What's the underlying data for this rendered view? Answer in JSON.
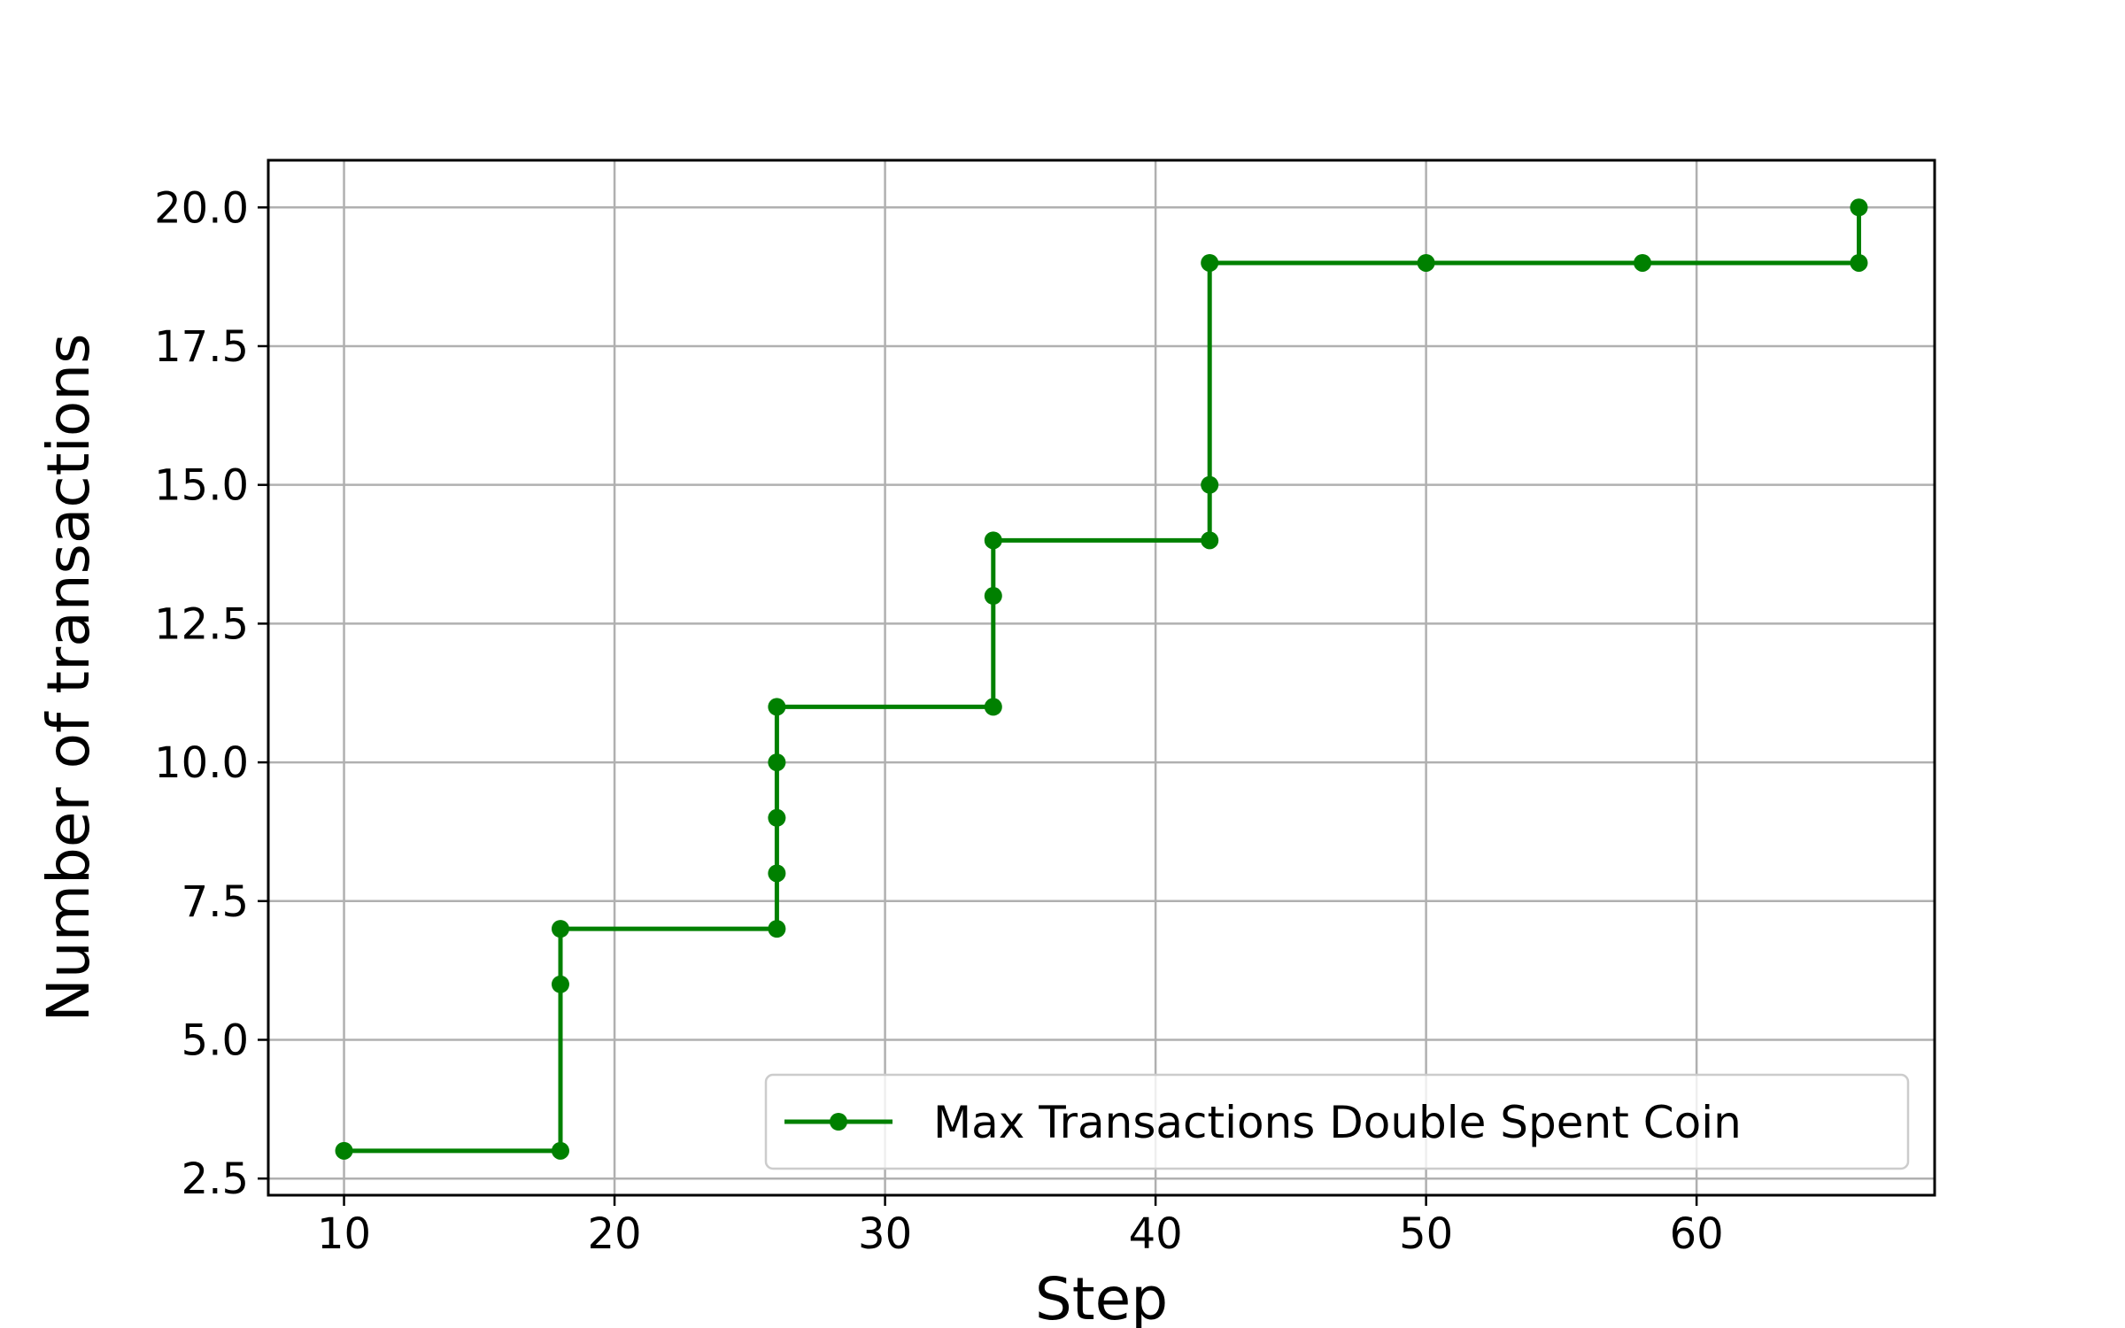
{
  "chart_data": {
    "type": "line",
    "xlabel": "Step",
    "ylabel": "Number of transactions",
    "xlim": [
      7.2,
      68.8
    ],
    "ylim": [
      2.2,
      20.85
    ],
    "x_ticks": [
      10,
      20,
      30,
      40,
      50,
      60
    ],
    "y_ticks": [
      2.5,
      5.0,
      7.5,
      10.0,
      12.5,
      15.0,
      17.5,
      20.0
    ],
    "x_tick_labels": [
      "10",
      "20",
      "30",
      "40",
      "50",
      "60"
    ],
    "y_tick_labels": [
      "2.5",
      "5.0",
      "7.5",
      "10.0",
      "12.5",
      "15.0",
      "17.5",
      "20.0"
    ],
    "grid": true,
    "legend_position": "lower-right",
    "series": [
      {
        "name": "Max Transactions Double Spent Coin",
        "color": "#008000",
        "marker": "circle",
        "x": [
          10,
          18,
          18,
          18,
          26,
          26,
          26,
          26,
          26,
          34,
          34,
          34,
          42,
          42,
          42,
          50,
          58,
          66,
          66
        ],
        "y": [
          3,
          3,
          6,
          7,
          7,
          8,
          9,
          10,
          11,
          11,
          13,
          14,
          14,
          15,
          19,
          19,
          19,
          19,
          20
        ]
      }
    ]
  }
}
